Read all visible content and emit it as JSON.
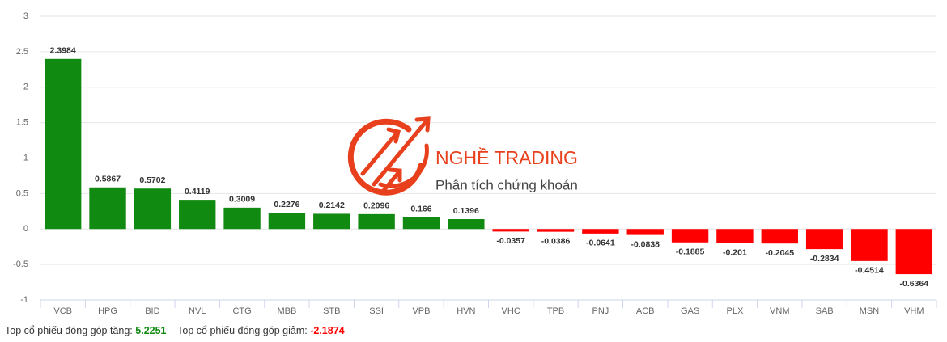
{
  "chart_data": {
    "type": "bar",
    "categories": [
      "VCB",
      "HPG",
      "BID",
      "NVL",
      "CTG",
      "MBB",
      "STB",
      "SSI",
      "VPB",
      "HVN",
      "VHC",
      "TPB",
      "PNJ",
      "ACB",
      "GAS",
      "PLX",
      "VNM",
      "SAB",
      "MSN",
      "VHM"
    ],
    "values": [
      2.3984,
      0.5867,
      0.5702,
      0.4119,
      0.3009,
      0.2276,
      0.2142,
      0.2096,
      0.166,
      0.1396,
      -0.0357,
      -0.0386,
      -0.0641,
      -0.0838,
      -0.1885,
      -0.201,
      -0.2045,
      -0.2834,
      -0.4514,
      -0.6364
    ],
    "color_positive": "#118a11",
    "color_negative": "#ff0000",
    "ylim": [
      -1,
      3
    ],
    "yticks": [
      -1,
      -0.5,
      0,
      0.5,
      1,
      1.5,
      2,
      2.5,
      3
    ],
    "grid": true
  },
  "watermark": {
    "brand": "NGHỀ TRADING",
    "tagline": "Phân tích chứng khoán"
  },
  "footer": {
    "up_label": "Top cổ phiếu đóng góp tăng:",
    "up_value": 5.2251,
    "down_label": "Top cổ phiếu đóng góp giảm:",
    "down_value": -2.1874
  }
}
